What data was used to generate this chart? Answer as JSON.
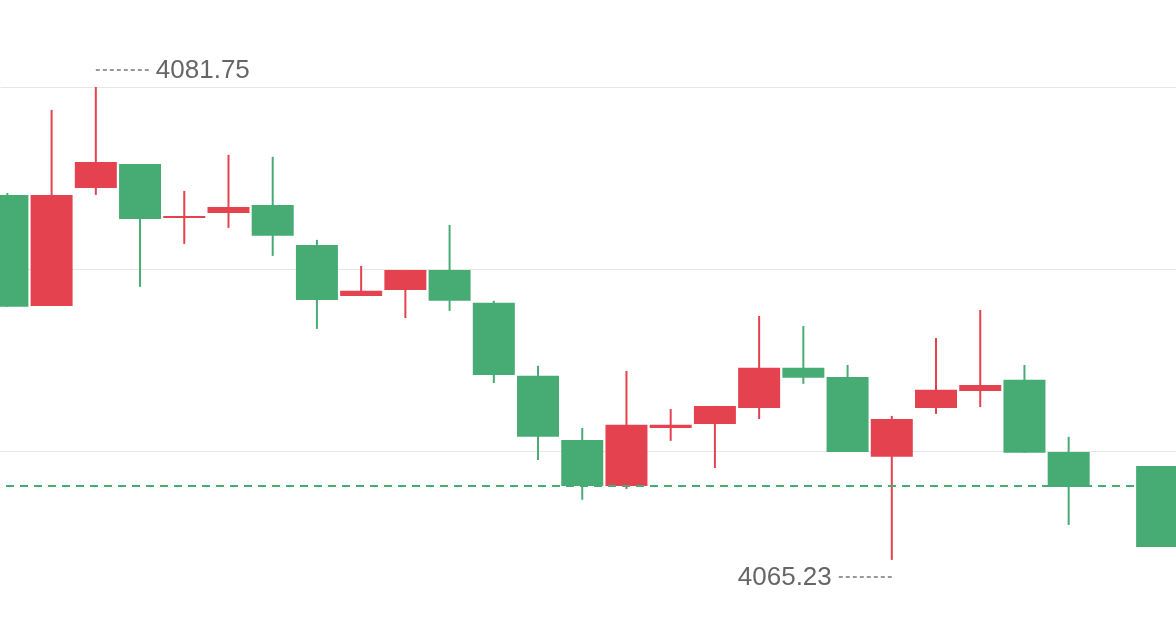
{
  "chart_data": {
    "type": "candlestick",
    "categories": [
      null,
      null,
      null,
      null,
      null,
      null,
      null,
      null,
      null,
      null,
      null,
      null,
      null,
      null,
      null,
      null,
      null,
      null,
      null,
      null,
      null,
      null,
      null,
      null,
      null,
      null,
      null
    ],
    "ohlc": [
      [
        4077.98,
        4078.05,
        4074.07,
        4074.07
      ],
      [
        4074.1,
        4080.95,
        4074.1,
        4077.98
      ],
      [
        4078.22,
        4081.75,
        4077.98,
        4079.13
      ],
      [
        4079.06,
        4079.06,
        4074.77,
        4077.14
      ],
      [
        4077.17,
        4078.12,
        4076.27,
        4077.24
      ],
      [
        4077.35,
        4079.38,
        4076.83,
        4077.56
      ],
      [
        4077.63,
        4079.31,
        4075.85,
        4076.55
      ],
      [
        4076.23,
        4076.41,
        4073.3,
        4074.31
      ],
      [
        4074.45,
        4075.5,
        4074.45,
        4074.63
      ],
      [
        4074.66,
        4075.36,
        4073.68,
        4075.36
      ],
      [
        4075.36,
        4076.93,
        4073.93,
        4074.28
      ],
      [
        4074.21,
        4074.28,
        4071.41,
        4071.69
      ],
      [
        4071.66,
        4072.01,
        4068.72,
        4069.53
      ],
      [
        4069.42,
        4069.84,
        4067.33,
        4067.81
      ],
      [
        4067.81,
        4071.83,
        4067.71,
        4069.95
      ],
      [
        4069.84,
        4070.5,
        4069.39,
        4069.95
      ],
      [
        4069.98,
        4070.61,
        4068.44,
        4070.61
      ],
      [
        4070.54,
        4073.75,
        4070.15,
        4071.94
      ],
      [
        4071.94,
        4073.4,
        4071.38,
        4071.59
      ],
      [
        4071.62,
        4072.04,
        4069.0,
        4069.0
      ],
      [
        4068.83,
        4070.26,
        4065.23,
        4070.15
      ],
      [
        4070.54,
        4072.98,
        4070.33,
        4071.17
      ],
      [
        4071.13,
        4073.96,
        4070.57,
        4071.34
      ],
      [
        4071.52,
        4072.04,
        4068.97,
        4068.97
      ],
      [
        4069.0,
        4069.53,
        4066.45,
        4067.78
      ],
      null,
      [
        4068.51,
        4068.51,
        4065.68,
        4065.68
      ]
    ],
    "colors": [
      "#46ac74",
      "#e5424f",
      "#e5424f",
      "#46ac74",
      "#e5424f",
      "#e5424f",
      "#46ac74",
      "#46ac74",
      "#e5424f",
      "#e5424f",
      "#46ac74",
      "#46ac74",
      "#46ac74",
      "#46ac74",
      "#e5424f",
      "#e5424f",
      "#e5424f",
      "#e5424f",
      "#46ac74",
      "#46ac74",
      "#e5424f",
      "#e5424f",
      "#e5424f",
      "#46ac74",
      "#46ac74",
      null,
      "#46ac74"
    ],
    "ylim": [
      4063.13,
      4084.79
    ],
    "yticks": [
      {
        "value": 4081.75,
        "label": null
      },
      {
        "value": 4075.39,
        "label": null
      },
      {
        "value": 4069.04,
        "label": null
      }
    ],
    "grid": "y",
    "ref_lines": [
      {
        "axis": "y",
        "value": 4067.81,
        "color": "#46ac74",
        "line_style": "dashed"
      }
    ],
    "annotations": [
      "4081.75",
      "4065.23"
    ]
  }
}
